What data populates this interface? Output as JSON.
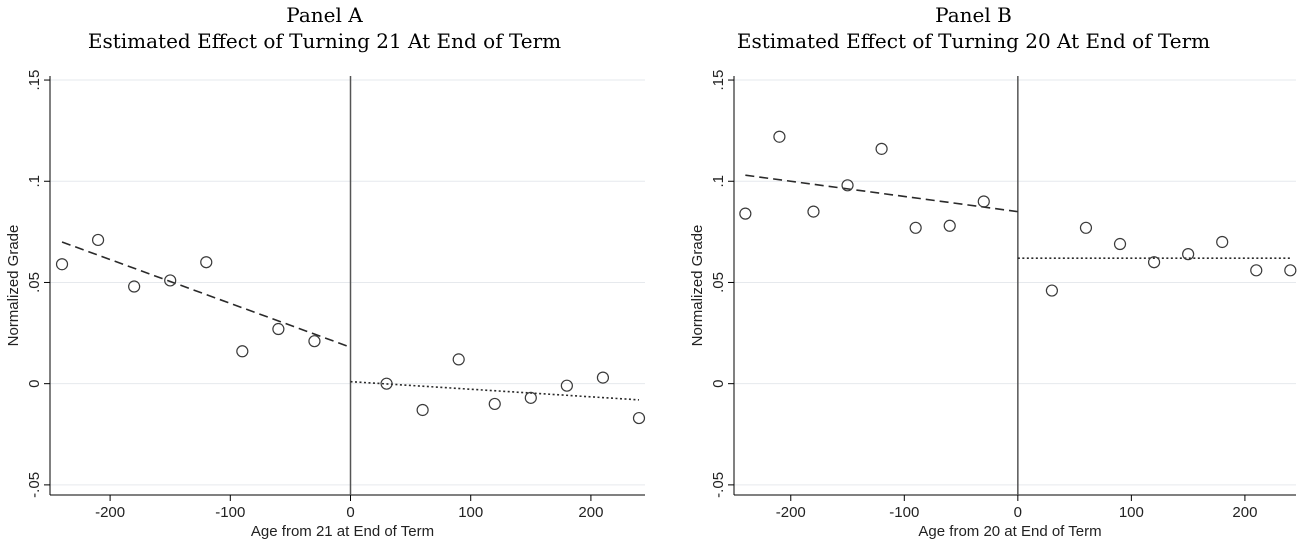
{
  "chart_data": [
    {
      "type": "scatter",
      "panel_label": "Panel A",
      "title": "Estimated Effect of Turning 21 At End of Term",
      "xlabel": "Age from 21 at End of Term",
      "ylabel": "Normalized Grade",
      "xlim": [
        -250,
        245
      ],
      "ylim": [
        -0.055,
        0.152
      ],
      "xticks": [
        {
          "value": -200,
          "label": "-200"
        },
        {
          "value": -100,
          "label": "-100"
        },
        {
          "value": 0,
          "label": "0"
        },
        {
          "value": 100,
          "label": "100"
        },
        {
          "value": 200,
          "label": "200"
        }
      ],
      "yticks": [
        {
          "value": -0.05,
          "label": "-.05"
        },
        {
          "value": 0,
          "label": "0"
        },
        {
          "value": 0.05,
          "label": ".05"
        },
        {
          "value": 0.1,
          "label": ".1"
        },
        {
          "value": 0.15,
          "label": ".15"
        }
      ],
      "grid": true,
      "cutoff": 0,
      "points": [
        [
          -240,
          0.059
        ],
        [
          -210,
          0.071
        ],
        [
          -180,
          0.048
        ],
        [
          -150,
          0.051
        ],
        [
          -120,
          0.06
        ],
        [
          -90,
          0.016
        ],
        [
          -60,
          0.027
        ],
        [
          -30,
          0.021
        ],
        [
          30,
          0.0
        ],
        [
          60,
          -0.013
        ],
        [
          90,
          0.012
        ],
        [
          120,
          -0.01
        ],
        [
          150,
          -0.007
        ],
        [
          180,
          -0.001
        ],
        [
          210,
          0.003
        ],
        [
          240,
          -0.017
        ]
      ],
      "fit_left": {
        "style": "dashed",
        "x": [
          -240,
          0
        ],
        "y": [
          0.07,
          0.018
        ]
      },
      "fit_right": {
        "style": "dotted",
        "x": [
          0,
          240
        ],
        "y": [
          0.001,
          -0.008
        ]
      }
    },
    {
      "type": "scatter",
      "panel_label": "Panel B",
      "title": "Estimated Effect of Turning 20 At End of Term",
      "xlabel": "Age from 20 at End of Term",
      "ylabel": "Normalized Grade",
      "xlim": [
        -250,
        245
      ],
      "ylim": [
        -0.055,
        0.152
      ],
      "xticks": [
        {
          "value": -200,
          "label": "-200"
        },
        {
          "value": -100,
          "label": "-100"
        },
        {
          "value": 0,
          "label": "0"
        },
        {
          "value": 100,
          "label": "100"
        },
        {
          "value": 200,
          "label": "200"
        }
      ],
      "yticks": [
        {
          "value": -0.05,
          "label": "-.05"
        },
        {
          "value": 0,
          "label": "0"
        },
        {
          "value": 0.05,
          "label": ".05"
        },
        {
          "value": 0.1,
          "label": ".1"
        },
        {
          "value": 0.15,
          "label": ".15"
        }
      ],
      "grid": true,
      "cutoff": 0,
      "points": [
        [
          -240,
          0.084
        ],
        [
          -210,
          0.122
        ],
        [
          -180,
          0.085
        ],
        [
          -150,
          0.098
        ],
        [
          -120,
          0.116
        ],
        [
          -90,
          0.077
        ],
        [
          -60,
          0.078
        ],
        [
          -30,
          0.09
        ],
        [
          30,
          0.046
        ],
        [
          60,
          0.077
        ],
        [
          90,
          0.069
        ],
        [
          120,
          0.06
        ],
        [
          150,
          0.064
        ],
        [
          180,
          0.07
        ],
        [
          210,
          0.056
        ],
        [
          240,
          0.056
        ]
      ],
      "fit_left": {
        "style": "dashed",
        "x": [
          -240,
          0
        ],
        "y": [
          0.103,
          0.085
        ]
      },
      "fit_right": {
        "style": "dotted",
        "x": [
          0,
          240
        ],
        "y": [
          0.062,
          0.062
        ]
      }
    }
  ],
  "colors": {
    "background": "#ffffff",
    "grid": "#e6e9ed",
    "axis": "#000000",
    "marker_stroke": "#3a3a3a",
    "fit_line": "#2a2a2a",
    "cutoff_line": "#555555"
  }
}
